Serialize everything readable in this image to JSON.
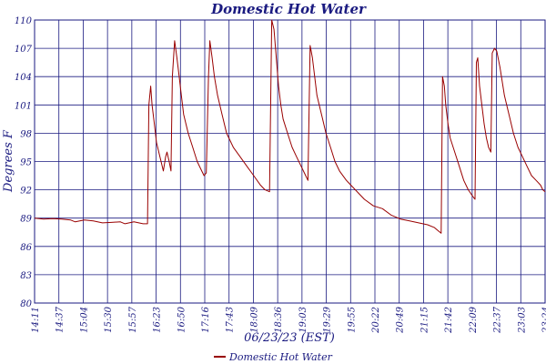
{
  "chart_data": {
    "type": "line",
    "title": "Domestic Hot Water",
    "xlabel": "06/23/23 (EST)",
    "ylabel": "Degrees F",
    "ylim": [
      80,
      110
    ],
    "y_ticks": [
      80,
      83,
      86,
      89,
      92,
      95,
      98,
      101,
      104,
      107,
      110
    ],
    "x_tick_labels": [
      "14:11",
      "14:37",
      "15:04",
      "15:30",
      "15:57",
      "16:23",
      "16:50",
      "17:16",
      "17:43",
      "18:09",
      "18:36",
      "19:03",
      "19:29",
      "19:55",
      "20:22",
      "20:49",
      "21:15",
      "21:42",
      "22:09",
      "22:37",
      "23:03",
      "23:24"
    ],
    "grid": true,
    "legend_position": "bottom",
    "colors": {
      "series": "#990000",
      "grid": "#1a1a80",
      "text": "#1a1a80"
    },
    "series": [
      {
        "name": "Domestic Hot Water",
        "points": [
          [
            0.0,
            89.0
          ],
          [
            0.02,
            88.9
          ],
          [
            0.04,
            88.95
          ],
          [
            0.06,
            88.9
          ],
          [
            0.08,
            88.8
          ],
          [
            0.09,
            88.6
          ],
          [
            0.11,
            88.8
          ],
          [
            0.13,
            88.7
          ],
          [
            0.15,
            88.5
          ],
          [
            0.17,
            88.55
          ],
          [
            0.19,
            88.6
          ],
          [
            0.2,
            88.4
          ],
          [
            0.22,
            88.6
          ],
          [
            0.24,
            88.4
          ],
          [
            0.25,
            88.4
          ],
          [
            0.253,
            101.0
          ],
          [
            0.257,
            103.0
          ],
          [
            0.26,
            101.0
          ],
          [
            0.265,
            99.0
          ],
          [
            0.27,
            97.0
          ],
          [
            0.275,
            96.0
          ],
          [
            0.28,
            95.0
          ],
          [
            0.285,
            94.0
          ],
          [
            0.29,
            95.5
          ],
          [
            0.293,
            96.0
          ],
          [
            0.298,
            95.0
          ],
          [
            0.302,
            94.0
          ],
          [
            0.305,
            104.0
          ],
          [
            0.31,
            107.8
          ],
          [
            0.315,
            106.0
          ],
          [
            0.32,
            104.0
          ],
          [
            0.325,
            102.0
          ],
          [
            0.33,
            100.0
          ],
          [
            0.34,
            98.0
          ],
          [
            0.35,
            96.5
          ],
          [
            0.36,
            95.0
          ],
          [
            0.37,
            94.0
          ],
          [
            0.375,
            93.5
          ],
          [
            0.38,
            93.8
          ],
          [
            0.385,
            104.0
          ],
          [
            0.388,
            107.8
          ],
          [
            0.393,
            106.0
          ],
          [
            0.398,
            104.0
          ],
          [
            0.405,
            102.0
          ],
          [
            0.415,
            100.0
          ],
          [
            0.425,
            98.0
          ],
          [
            0.44,
            96.5
          ],
          [
            0.455,
            95.5
          ],
          [
            0.47,
            94.5
          ],
          [
            0.485,
            93.5
          ],
          [
            0.5,
            92.5
          ],
          [
            0.51,
            92.0
          ],
          [
            0.52,
            91.8
          ],
          [
            0.525,
            110.0
          ],
          [
            0.53,
            109.0
          ],
          [
            0.535,
            106.0
          ],
          [
            0.54,
            103.0
          ],
          [
            0.545,
            101.0
          ],
          [
            0.55,
            99.5
          ],
          [
            0.56,
            98.0
          ],
          [
            0.57,
            96.5
          ],
          [
            0.58,
            95.5
          ],
          [
            0.59,
            94.5
          ],
          [
            0.6,
            93.5
          ],
          [
            0.605,
            93.0
          ],
          [
            0.61,
            107.3
          ],
          [
            0.615,
            106.0
          ],
          [
            0.62,
            104.0
          ],
          [
            0.625,
            102.0
          ],
          [
            0.635,
            100.0
          ],
          [
            0.645,
            98.0
          ],
          [
            0.655,
            96.5
          ],
          [
            0.665,
            95.0
          ],
          [
            0.675,
            94.0
          ],
          [
            0.69,
            93.0
          ],
          [
            0.71,
            92.0
          ],
          [
            0.73,
            91.0
          ],
          [
            0.75,
            90.3
          ],
          [
            0.77,
            90.0
          ],
          [
            0.79,
            89.3
          ],
          [
            0.81,
            88.9
          ],
          [
            0.83,
            88.7
          ],
          [
            0.85,
            88.5
          ],
          [
            0.87,
            88.3
          ],
          [
            0.885,
            88.0
          ],
          [
            0.895,
            87.6
          ],
          [
            0.9,
            87.4
          ],
          [
            0.903,
            104.0
          ],
          [
            0.907,
            103.0
          ],
          [
            0.91,
            101.0
          ],
          [
            0.915,
            99.0
          ],
          [
            0.92,
            97.5
          ],
          [
            0.93,
            96.0
          ],
          [
            0.94,
            94.5
          ],
          [
            0.95,
            93.0
          ],
          [
            0.96,
            92.0
          ],
          [
            0.97,
            91.3
          ],
          [
            0.975,
            91.0
          ],
          [
            0.978,
            105.5
          ],
          [
            0.981,
            106.0
          ],
          [
            0.985,
            103.0
          ],
          [
            0.99,
            101.0
          ],
          [
            0.995,
            99.0
          ],
          [
            1.0,
            97.5
          ],
          [
            1.005,
            96.5
          ],
          [
            1.01,
            96.0
          ],
          [
            1.013,
            106.5
          ],
          [
            1.018,
            107.0
          ],
          [
            1.023,
            106.7
          ],
          [
            1.03,
            105.0
          ],
          [
            1.04,
            102.0
          ],
          [
            1.05,
            100.0
          ],
          [
            1.06,
            98.0
          ],
          [
            1.07,
            96.5
          ],
          [
            1.08,
            95.5
          ],
          [
            1.09,
            94.5
          ],
          [
            1.1,
            93.5
          ],
          [
            1.11,
            93.0
          ],
          [
            1.12,
            92.5
          ],
          [
            1.125,
            92.0
          ],
          [
            1.13,
            91.8
          ]
        ]
      }
    ]
  }
}
